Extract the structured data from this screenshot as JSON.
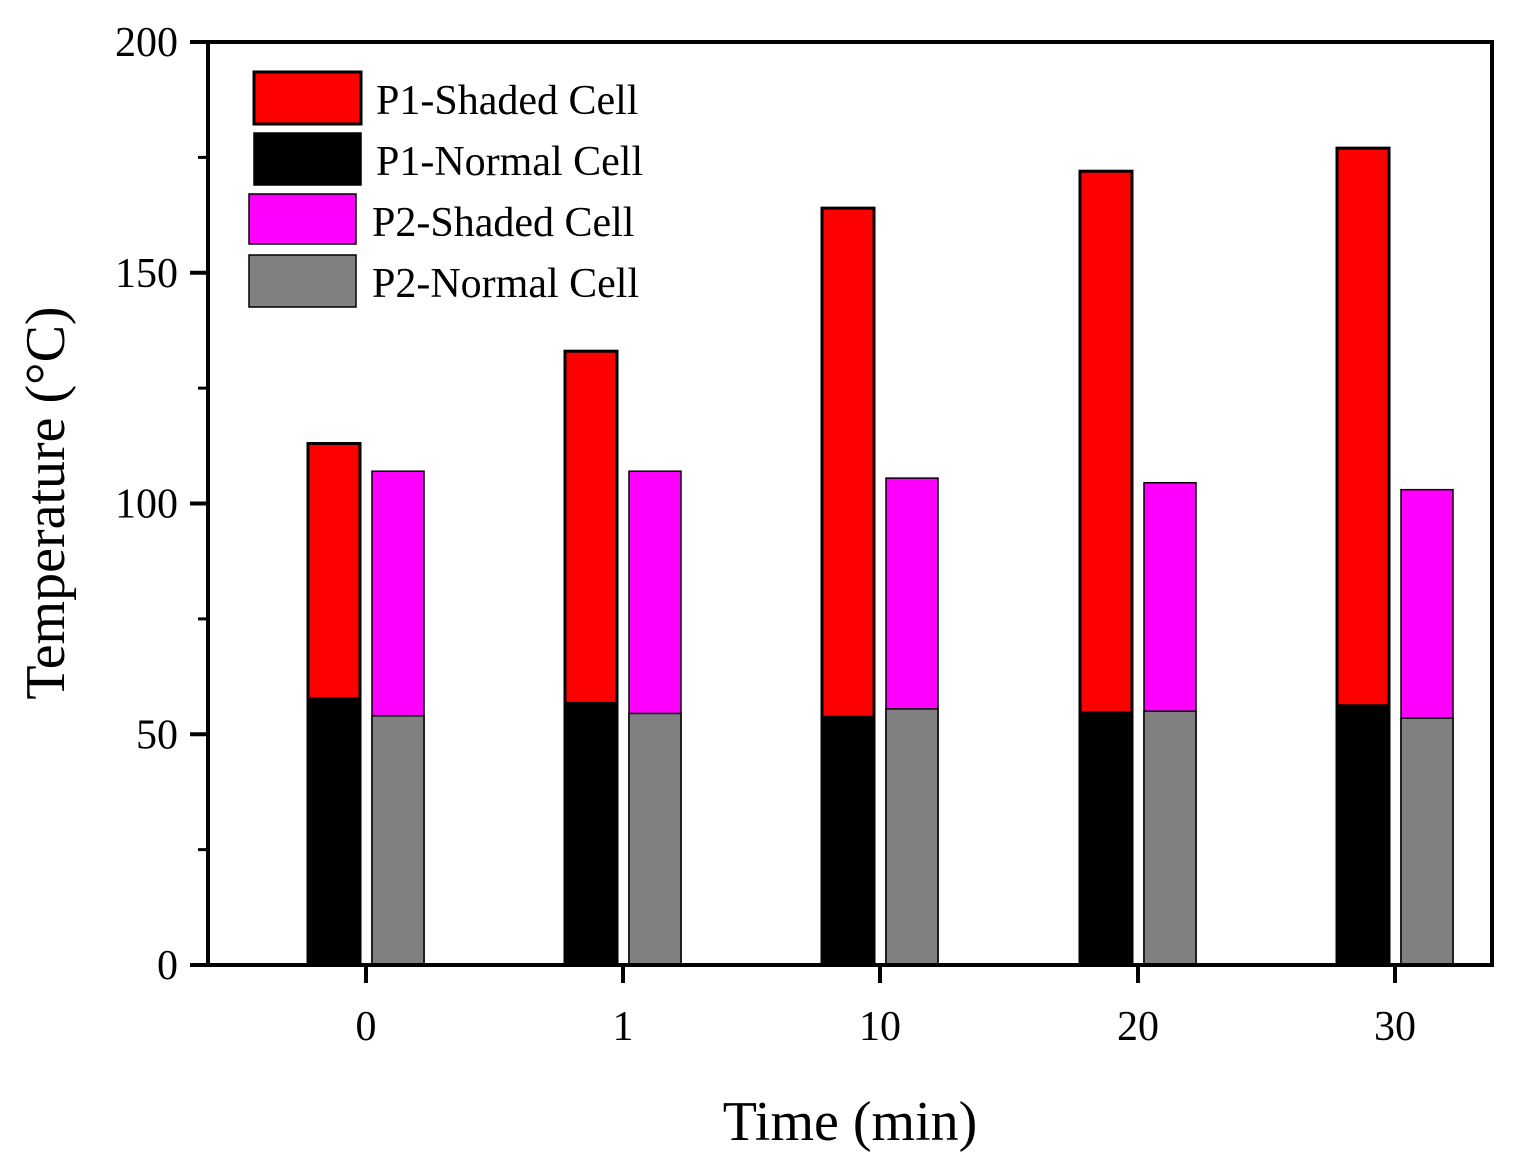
{
  "chart_data": {
    "type": "bar",
    "title": "",
    "xlabel": "Time (min)",
    "ylabel": "Temperature (°C)",
    "ylim": [
      0,
      200
    ],
    "yticks": [
      0,
      50,
      100,
      150,
      200
    ],
    "yticks_labels": [
      "0",
      "50",
      "100",
      "150",
      "200"
    ],
    "categories": [
      "0",
      "1",
      "10",
      "20",
      "30"
    ],
    "grid": false,
    "legend_position": "top-left",
    "series": [
      {
        "name": "P1-Shaded Cell",
        "color": "#ff0000",
        "group": "P1",
        "values": [
          113,
          133,
          164,
          172,
          177
        ]
      },
      {
        "name": "P1-Normal Cell",
        "color": "#000000",
        "group": "P1",
        "values": [
          58,
          57,
          54,
          55,
          56.5
        ]
      },
      {
        "name": "P2-Shaded Cell",
        "color": "#ff00ff",
        "group": "P2",
        "values": [
          107,
          107,
          105.5,
          104.5,
          103
        ]
      },
      {
        "name": "P2-Normal Cell",
        "color": "#808080",
        "group": "P2",
        "values": [
          54,
          54.5,
          55.5,
          55,
          53.5
        ]
      }
    ]
  }
}
